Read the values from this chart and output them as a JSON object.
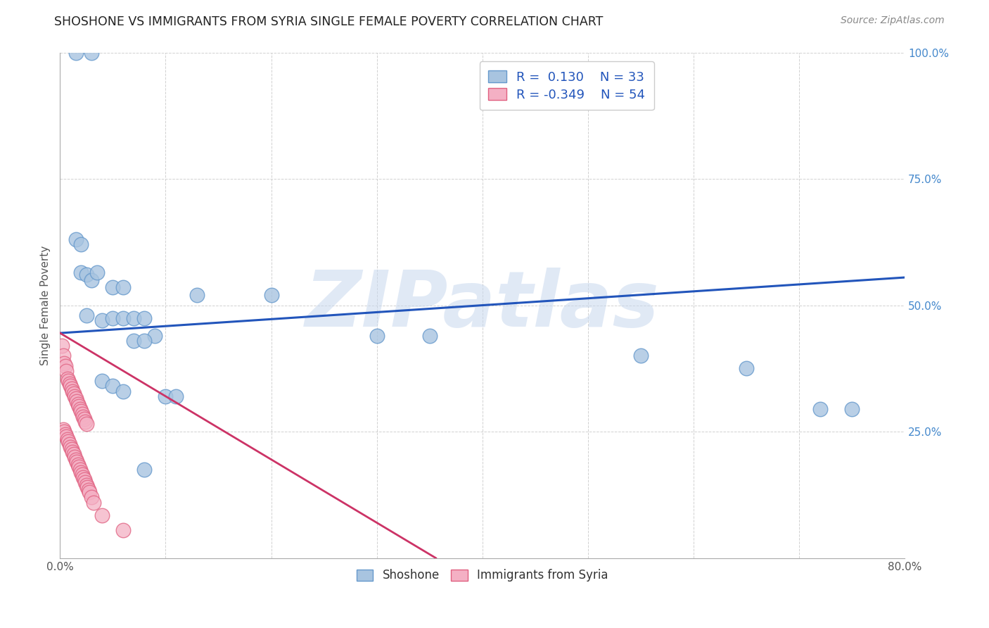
{
  "title": "SHOSHONE VS IMMIGRANTS FROM SYRIA SINGLE FEMALE POVERTY CORRELATION CHART",
  "source": "Source: ZipAtlas.com",
  "ylabel": "Single Female Poverty",
  "watermark": "ZIPatlas",
  "xlim": [
    0.0,
    0.8
  ],
  "ylim": [
    0.0,
    1.0
  ],
  "xticks": [
    0.0,
    0.1,
    0.2,
    0.3,
    0.4,
    0.5,
    0.6,
    0.7,
    0.8
  ],
  "xticklabels": [
    "0.0%",
    "",
    "",
    "",
    "",
    "",
    "",
    "",
    "80.0%"
  ],
  "yticks": [
    0.0,
    0.25,
    0.5,
    0.75,
    1.0
  ],
  "right_yticklabels": [
    "",
    "25.0%",
    "50.0%",
    "75.0%",
    "100.0%"
  ],
  "shoshone_color": "#a8c4e0",
  "shoshone_edge": "#6699cc",
  "syria_color": "#f4b0c4",
  "syria_edge": "#e06080",
  "trend_blue": "#2255bb",
  "trend_pink": "#cc3366",
  "R_shoshone": 0.13,
  "N_shoshone": 33,
  "R_syria": -0.349,
  "N_syria": 54,
  "blue_trend_x0": 0.0,
  "blue_trend_y0": 0.445,
  "blue_trend_x1": 0.8,
  "blue_trend_y1": 0.555,
  "pink_trend_x0": 0.0,
  "pink_trend_y0": 0.445,
  "pink_trend_x1": 0.3,
  "pink_trend_y1": 0.07,
  "shoshone_x": [
    0.015,
    0.03,
    0.015,
    0.02,
    0.02,
    0.025,
    0.03,
    0.035,
    0.025,
    0.04,
    0.05,
    0.06,
    0.05,
    0.06,
    0.07,
    0.08,
    0.09,
    0.07,
    0.08,
    0.13,
    0.2,
    0.3,
    0.35,
    0.55,
    0.65,
    0.72,
    0.75,
    0.1,
    0.11,
    0.04,
    0.05,
    0.06,
    0.08
  ],
  "shoshone_y": [
    1.0,
    1.0,
    0.63,
    0.62,
    0.565,
    0.56,
    0.55,
    0.565,
    0.48,
    0.47,
    0.535,
    0.535,
    0.475,
    0.475,
    0.475,
    0.475,
    0.44,
    0.43,
    0.43,
    0.52,
    0.52,
    0.44,
    0.44,
    0.4,
    0.375,
    0.295,
    0.295,
    0.32,
    0.32,
    0.35,
    0.34,
    0.33,
    0.175
  ],
  "syria_x": [
    0.002,
    0.003,
    0.004,
    0.005,
    0.006,
    0.007,
    0.008,
    0.009,
    0.01,
    0.011,
    0.012,
    0.013,
    0.014,
    0.015,
    0.016,
    0.017,
    0.018,
    0.019,
    0.02,
    0.021,
    0.022,
    0.023,
    0.024,
    0.025,
    0.003,
    0.004,
    0.005,
    0.006,
    0.007,
    0.008,
    0.009,
    0.01,
    0.011,
    0.012,
    0.013,
    0.014,
    0.015,
    0.016,
    0.017,
    0.018,
    0.019,
    0.02,
    0.021,
    0.022,
    0.023,
    0.024,
    0.025,
    0.026,
    0.027,
    0.028,
    0.03,
    0.032,
    0.04,
    0.06
  ],
  "syria_y": [
    0.42,
    0.4,
    0.385,
    0.38,
    0.37,
    0.355,
    0.35,
    0.345,
    0.34,
    0.335,
    0.33,
    0.325,
    0.32,
    0.315,
    0.31,
    0.305,
    0.3,
    0.295,
    0.29,
    0.285,
    0.28,
    0.275,
    0.27,
    0.265,
    0.255,
    0.25,
    0.245,
    0.24,
    0.235,
    0.23,
    0.225,
    0.22,
    0.215,
    0.21,
    0.205,
    0.2,
    0.195,
    0.19,
    0.185,
    0.18,
    0.175,
    0.17,
    0.165,
    0.16,
    0.155,
    0.15,
    0.145,
    0.14,
    0.135,
    0.13,
    0.12,
    0.11,
    0.085,
    0.055
  ]
}
